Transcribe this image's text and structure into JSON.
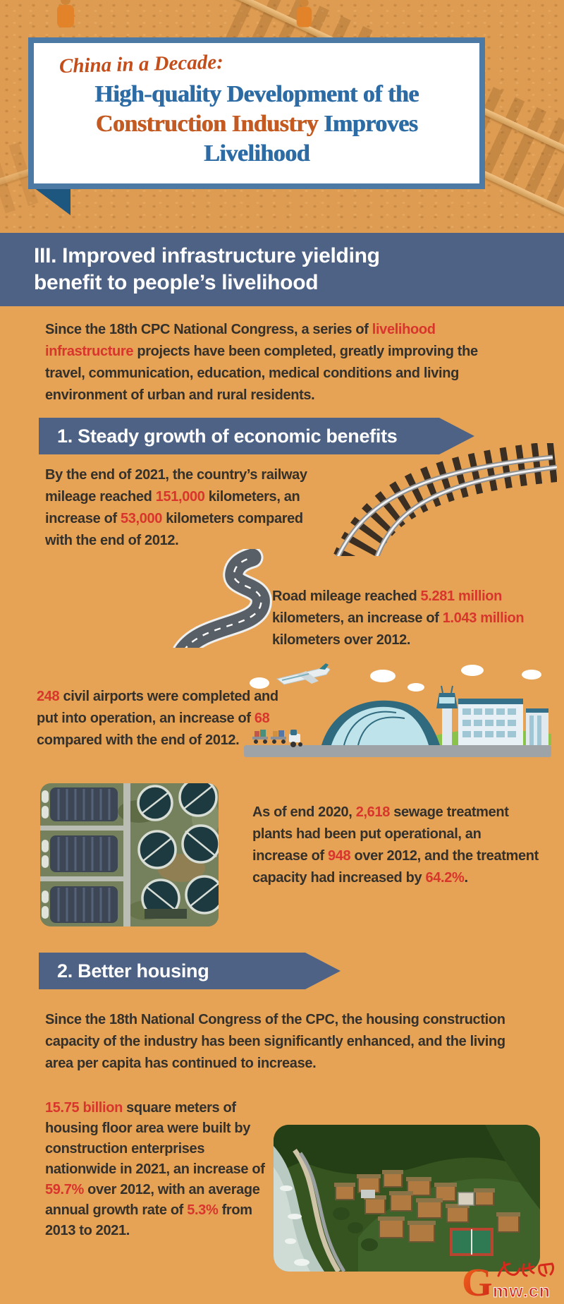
{
  "page": {
    "background": "#e6a355",
    "band_blue": "#4d6284",
    "box_border_blue": "#4d7aa5",
    "ribbon_blue": "#1d567f",
    "title_blue": "#2c6ba4",
    "title_orange": "#c35a22",
    "accent_red": "#d8352c",
    "body_text": "#34302b"
  },
  "header": {
    "eyebrow": "China in a Decade:",
    "title_segments": [
      {
        "text": "High-quality Development of the",
        "cls": "t-blue",
        "br": true
      },
      {
        "text": "Construction Industry",
        "cls": "t-orange"
      },
      {
        "text": " Improves",
        "cls": "t-blue",
        "br": true
      },
      {
        "text": "Livelihood",
        "cls": "t-blue"
      }
    ]
  },
  "section": {
    "heading_segments": [
      {
        "text": "III. Improved infrastructure yielding",
        "br": true
      },
      {
        "text": "benefit to people’s livelihood"
      }
    ]
  },
  "intro": {
    "segments": [
      {
        "text": "Since the 18th CPC National Congress, a series of "
      },
      {
        "text": "livelihood infrastructure",
        "cls": "em"
      },
      {
        "text": " projects have been completed, greatly improving the travel, communication, education, medical conditions and living environment of urban and rural residents."
      }
    ]
  },
  "subsections": [
    {
      "label": "1. Steady growth of economic benefits"
    },
    {
      "label": "2. Better housing"
    }
  ],
  "stats": {
    "railway": {
      "segments": [
        {
          "text": "By the end of 2021, the country’s railway mileage reached "
        },
        {
          "text": "151,000",
          "cls": "em"
        },
        {
          "text": " kilometers, an increase of "
        },
        {
          "text": "53,000",
          "cls": "em"
        },
        {
          "text": " kilometers compared with the end of 2012."
        }
      ]
    },
    "road": {
      "segments": [
        {
          "text": "Road mileage reached "
        },
        {
          "text": "5.281 million",
          "cls": "em"
        },
        {
          "text": " kilometers, an increase of "
        },
        {
          "text": "1.043 million",
          "cls": "em"
        },
        {
          "text": " kilometers over 2012."
        }
      ]
    },
    "airports": {
      "segments": [
        {
          "text": "248",
          "cls": "em"
        },
        {
          "text": " civil airports were completed and put into operation, an increase of "
        },
        {
          "text": "68",
          "cls": "em"
        },
        {
          "text": " compared with the end of 2012."
        }
      ]
    },
    "sewage": {
      "segments": [
        {
          "text": "As of end 2020, "
        },
        {
          "text": "2,618",
          "cls": "em"
        },
        {
          "text": " sewage treatment plants had been put operational, an increase of "
        },
        {
          "text": "948",
          "cls": "em"
        },
        {
          "text": " over 2012, and the treatment capacity had increased by "
        },
        {
          "text": "64.2%",
          "cls": "em"
        },
        {
          "text": "."
        }
      ]
    }
  },
  "housing": {
    "intro_segments": [
      {
        "text": "Since the 18th National Congress of the CPC, the housing construction capacity of the industry has been significantly enhanced, and the living area per capita has continued to increase."
      }
    ],
    "stats_segments": [
      {
        "text": "15.75 billion",
        "cls": "em"
      },
      {
        "text": " square meters of housing floor area were built by construction enterprises nationwide in 2021, an increase of "
      },
      {
        "text": "59.7%",
        "cls": "em"
      },
      {
        "text": " over 2012, with an average annual growth rate of "
      },
      {
        "text": "5.3%",
        "cls": "em"
      },
      {
        "text": " from 2013 to 2021."
      }
    ]
  },
  "footer": {
    "logo_g": "G",
    "logo_domain": "mw.cn",
    "logo_chinese": "光明网"
  }
}
